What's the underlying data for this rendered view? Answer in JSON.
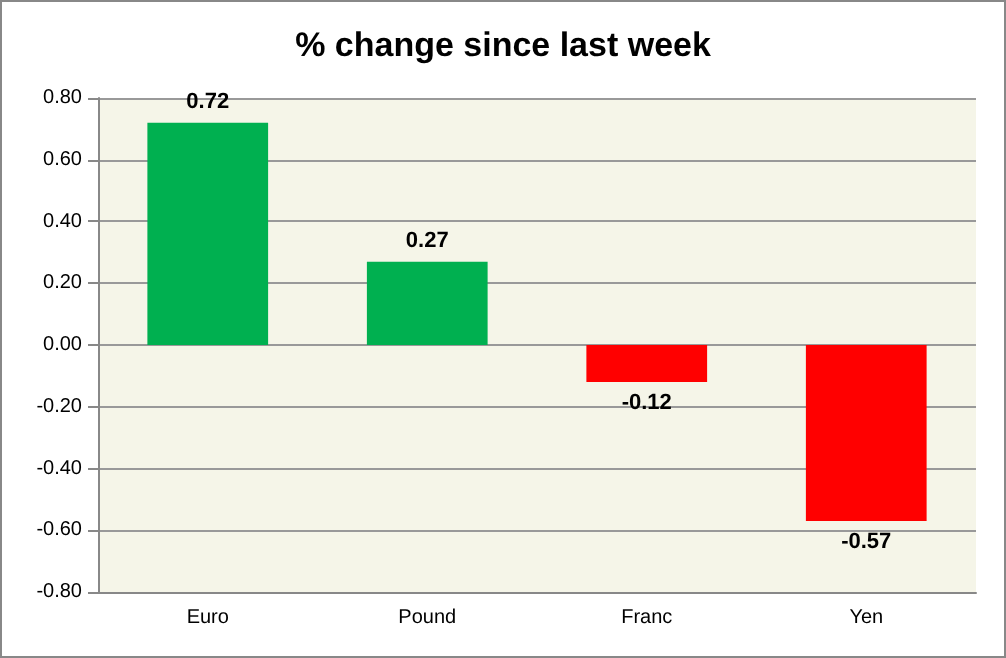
{
  "chart_data": {
    "type": "bar",
    "title": "% change since last week",
    "categories": [
      "Euro",
      "Pound",
      "Franc",
      "Yen"
    ],
    "values": [
      0.72,
      0.27,
      -0.12,
      -0.57
    ],
    "colors": [
      "#00b050",
      "#00b050",
      "#ff0000",
      "#ff0000"
    ],
    "ylim": [
      -0.8,
      0.8
    ],
    "yticks": [
      {
        "value": -0.8,
        "label": "-0.80"
      },
      {
        "value": -0.6,
        "label": "-0.60"
      },
      {
        "value": -0.4,
        "label": "-0.40"
      },
      {
        "value": -0.2,
        "label": "-0.20"
      },
      {
        "value": 0,
        "label": "0.00"
      },
      {
        "value": 0.2,
        "label": "0.20"
      },
      {
        "value": 0.4,
        "label": "0.40"
      },
      {
        "value": 0.6,
        "label": "0.60"
      },
      {
        "value": 0.8,
        "label": "0.80"
      }
    ],
    "grid": true,
    "data_labels": true
  }
}
